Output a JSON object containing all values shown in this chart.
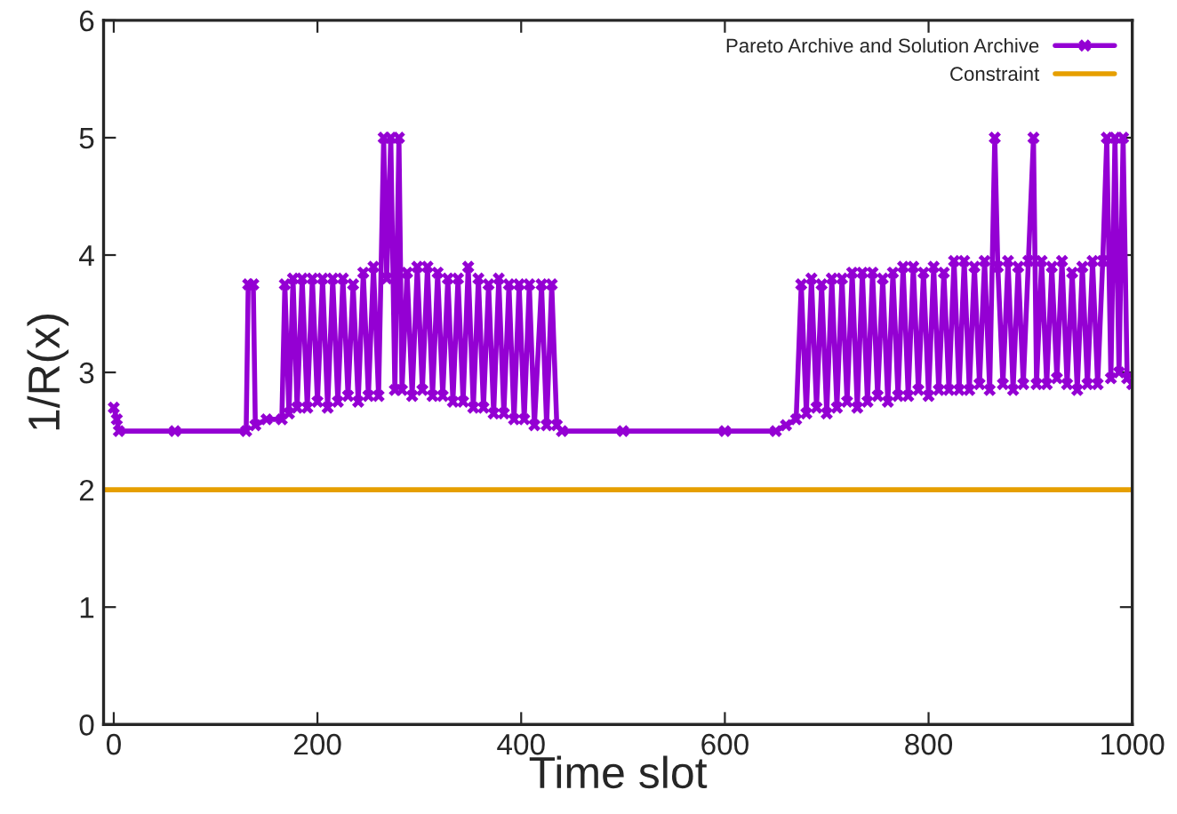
{
  "chart_data": {
    "type": "line",
    "xlabel": "Time slot",
    "ylabel": "1/R(x)",
    "xlim": [
      -10,
      1000
    ],
    "ylim": [
      0,
      6
    ],
    "xticks": [
      0,
      200,
      400,
      600,
      800,
      1000
    ],
    "yticks": [
      0,
      1,
      2,
      3,
      4,
      5,
      6
    ],
    "grid": false,
    "legend": "top right",
    "series": [
      {
        "name": "Pareto Archive and Solution Archive",
        "color": "#9400d3",
        "marker": "cross",
        "x": [
          0,
          3,
          5,
          60,
          130,
          132,
          137,
          139,
          150,
          165,
          168,
          172,
          176,
          180,
          185,
          190,
          195,
          200,
          205,
          210,
          215,
          220,
          225,
          230,
          235,
          240,
          245,
          250,
          255,
          260,
          265,
          268,
          272,
          276,
          280,
          283,
          288,
          293,
          298,
          303,
          308,
          313,
          318,
          323,
          328,
          333,
          338,
          343,
          348,
          353,
          358,
          363,
          368,
          373,
          378,
          383,
          388,
          393,
          398,
          403,
          408,
          413,
          420,
          425,
          430,
          435,
          440,
          500,
          600,
          650,
          660,
          670,
          675,
          680,
          685,
          690,
          695,
          700,
          705,
          710,
          715,
          720,
          725,
          730,
          735,
          740,
          745,
          750,
          755,
          760,
          765,
          770,
          775,
          780,
          785,
          790,
          795,
          800,
          805,
          810,
          815,
          820,
          825,
          830,
          835,
          840,
          845,
          850,
          855,
          860,
          865,
          868,
          873,
          878,
          883,
          888,
          893,
          898,
          903,
          906,
          911,
          916,
          921,
          926,
          931,
          936,
          941,
          946,
          951,
          956,
          961,
          966,
          971,
          975,
          979,
          983,
          987,
          991,
          995,
          1000
        ],
        "values": [
          2.7,
          2.6,
          2.5,
          2.5,
          2.5,
          3.75,
          3.75,
          2.55,
          2.6,
          2.6,
          3.75,
          2.65,
          3.8,
          2.7,
          3.8,
          2.7,
          3.8,
          2.75,
          3.8,
          2.7,
          3.8,
          2.75,
          3.8,
          2.8,
          3.75,
          2.75,
          3.85,
          2.8,
          3.9,
          2.8,
          5.0,
          3.8,
          5.0,
          2.85,
          5.0,
          2.85,
          3.85,
          2.8,
          3.9,
          2.85,
          3.9,
          2.8,
          3.85,
          2.8,
          3.8,
          2.75,
          3.8,
          2.75,
          3.9,
          2.7,
          3.8,
          2.7,
          3.75,
          2.65,
          3.8,
          2.65,
          3.75,
          2.6,
          3.75,
          2.6,
          3.75,
          2.55,
          3.75,
          2.55,
          3.75,
          2.55,
          2.5,
          2.5,
          2.5,
          2.5,
          2.55,
          2.6,
          3.75,
          2.65,
          3.8,
          2.7,
          3.75,
          2.65,
          3.8,
          2.7,
          3.8,
          2.75,
          3.85,
          2.7,
          3.85,
          2.75,
          3.85,
          2.8,
          3.8,
          2.75,
          3.85,
          2.8,
          3.9,
          2.8,
          3.9,
          2.85,
          3.85,
          2.8,
          3.9,
          2.85,
          3.85,
          2.85,
          3.95,
          2.85,
          3.95,
          2.85,
          3.9,
          2.9,
          3.95,
          2.85,
          5.0,
          3.9,
          2.9,
          3.95,
          2.85,
          3.9,
          2.9,
          3.95,
          5.0,
          2.9,
          3.95,
          2.9,
          3.9,
          2.95,
          3.95,
          2.9,
          3.85,
          2.85,
          3.9,
          2.9,
          3.95,
          2.9,
          3.95,
          5.0,
          2.95,
          5.0,
          3.0,
          5.0,
          2.95,
          2.9
        ]
      },
      {
        "name": "Constraint",
        "color": "#e69f00",
        "marker": "none",
        "x": [
          -10,
          1000
        ],
        "values": [
          2,
          2
        ]
      }
    ]
  }
}
